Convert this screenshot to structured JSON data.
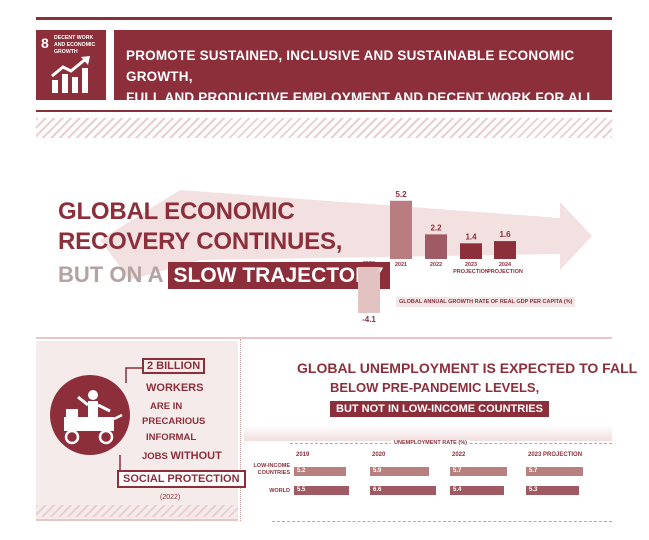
{
  "sdg": {
    "number": "8",
    "name": "DECENT WORK AND ECONOMIC GROWTH",
    "icon": "growth-chart-icon",
    "goal_text_line1": "PROMOTE SUSTAINED, INCLUSIVE AND SUSTAINABLE ECONOMIC GROWTH,",
    "goal_text_line2": "FULL AND PRODUCTIVE EMPLOYMENT AND DECENT WORK FOR ALL"
  },
  "growth": {
    "headline_line1": "GLOBAL ECONOMIC",
    "headline_line2": "RECOVERY CONTINUES,",
    "headline_line3_prefix": "BUT ON A",
    "headline_line3_badge": "SLOW TRAJECTORY",
    "caption": "GLOBAL ANNUAL GROWTH RATE OF REAL GDP PER CAPITA (%)"
  },
  "chart_data": {
    "type": "bar",
    "categories": [
      "2020",
      "2021",
      "2022",
      "2023 PROJECTION",
      "2024 PROJECTION"
    ],
    "values": [
      -4.1,
      5.2,
      2.2,
      1.4,
      1.6
    ],
    "value_labels": [
      "-4.1",
      "5.2",
      "2.2",
      "1.4",
      "1.6"
    ],
    "ylabel": "GLOBAL ANNUAL GROWTH RATE OF REAL GDP PER CAPITA (%)",
    "colors": [
      "#e3c2c2",
      "#b97c80",
      "#a05a63",
      "#8c2f3b",
      "#8c2f3b"
    ]
  },
  "workers": {
    "count": "2 BILLION",
    "line1": "WORKERS",
    "line2": "ARE IN",
    "line3": "PRECARIOUS",
    "line4": "INFORMAL",
    "line5_prefix": "JOBS",
    "line5_suffix": "WITHOUT",
    "badge": "SOCIAL PROTECTION",
    "year": "(2022)",
    "icon": "street-vendor-icon"
  },
  "unemployment": {
    "headline_line1": "GLOBAL UNEMPLOYMENT IS EXPECTED TO FALL",
    "headline_line2": "BELOW PRE-PANDEMIC LEVELS,",
    "badge": "BUT NOT IN LOW-INCOME COUNTRIES",
    "caption": "UNEMPLOYMENT RATE (%)",
    "years": [
      "2019",
      "2020",
      "2022",
      "2023 PROJECTION"
    ],
    "rows": [
      {
        "label_line1": "LOW-INCOME",
        "label_line2": "COUNTRIES",
        "values": [
          "5.2",
          "5.9",
          "5.7",
          "5.7"
        ]
      },
      {
        "label_line1": "WORLD",
        "label_line2": "",
        "values": [
          "5.5",
          "6.6",
          "5.4",
          "5.3"
        ]
      }
    ]
  }
}
